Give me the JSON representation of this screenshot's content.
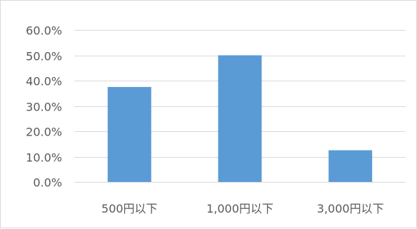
{
  "chart_data": {
    "type": "bar",
    "categories": [
      "500円以下",
      "1,000円以下",
      "3,000円以下"
    ],
    "values": [
      37.5,
      50.0,
      12.5
    ],
    "ylim": [
      0,
      60
    ],
    "yticks": [
      0,
      10,
      20,
      30,
      40,
      50,
      60
    ],
    "ytick_labels": [
      "0.0%",
      "10.0%",
      "20.0%",
      "30.0%",
      "40.0%",
      "50.0%",
      "60.0%"
    ],
    "title": "",
    "xlabel": "",
    "ylabel": "",
    "grid": true,
    "legend": "none",
    "bar_color": "#5b9bd5",
    "grid_color": "#d9d9d9",
    "text_color": "#595959"
  }
}
